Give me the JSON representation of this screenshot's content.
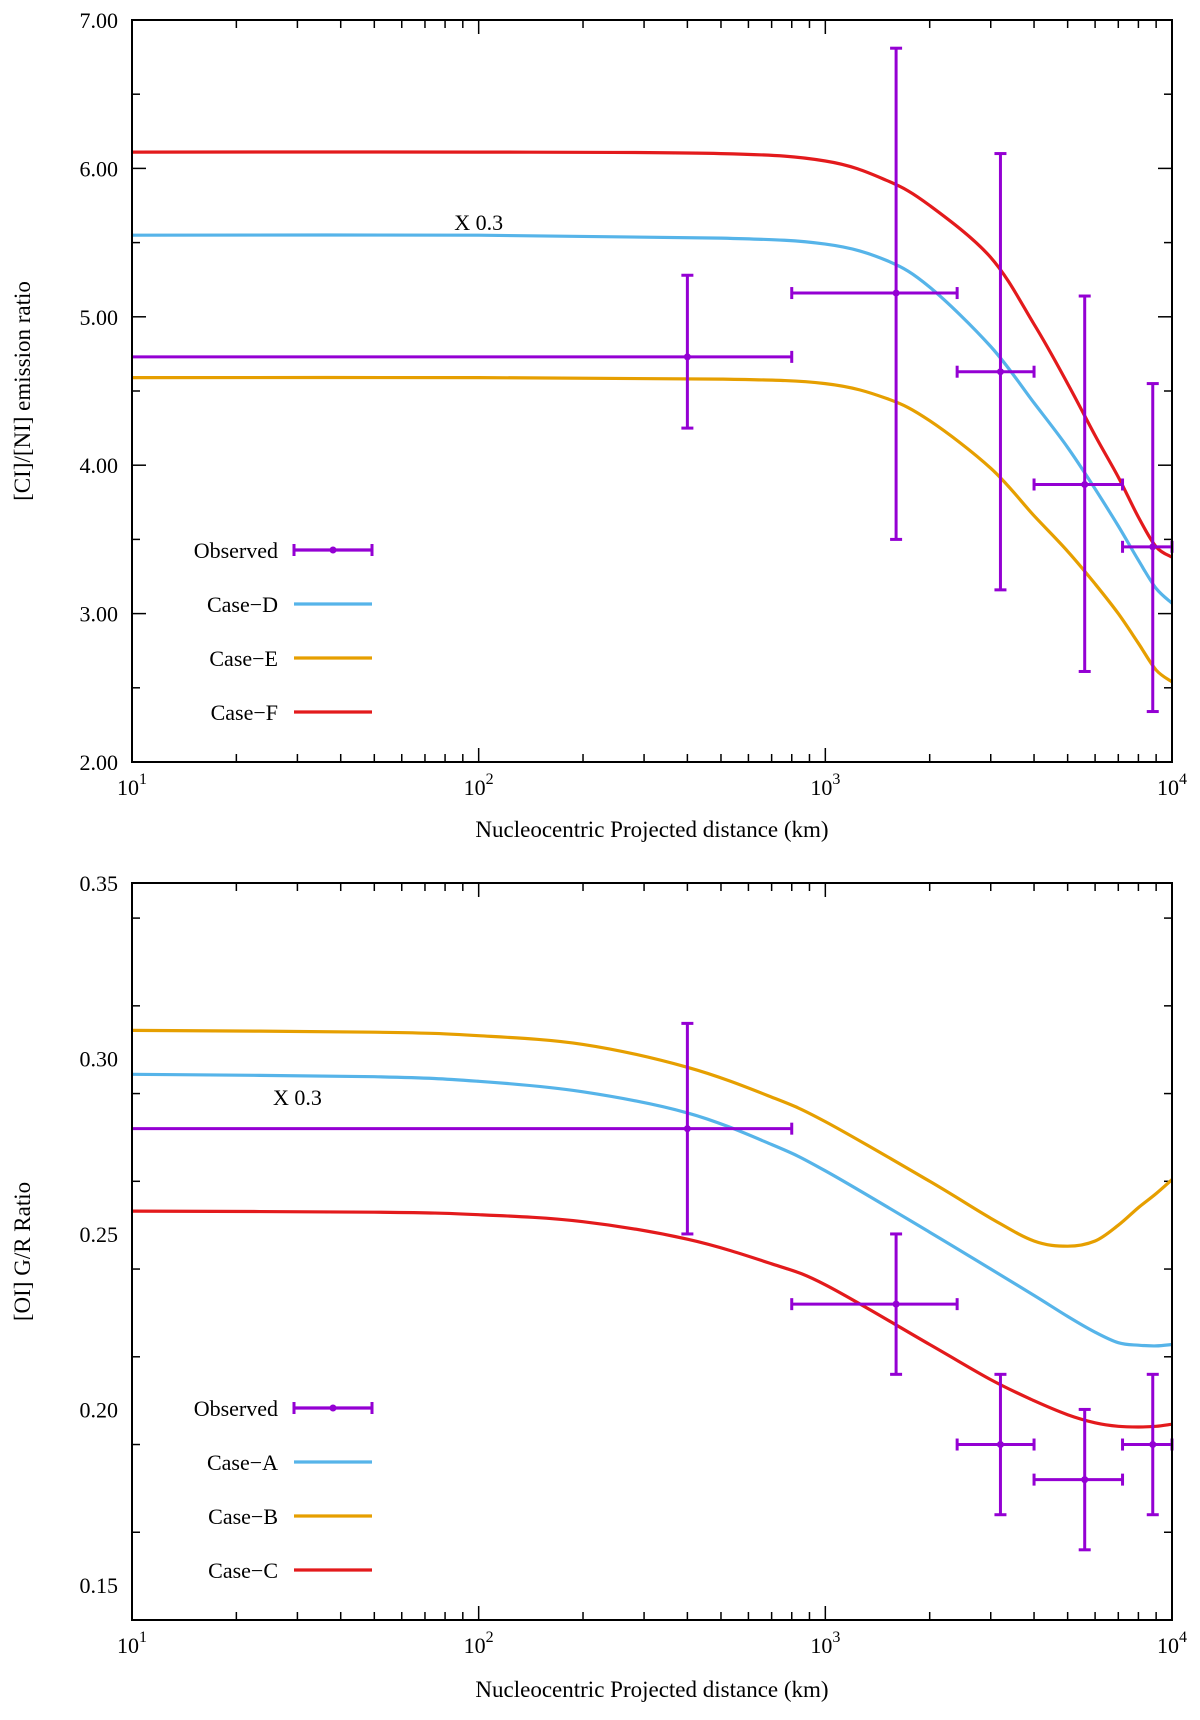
{
  "chart_data": [
    {
      "type": "line",
      "xscale": "log",
      "xlim": [
        10,
        10000
      ],
      "ylim": [
        2.0,
        7.0
      ],
      "xlabel": "Nucleocentric Projected distance (km)",
      "ylabel": "[CI]/[NI] emission ratio",
      "x_tick_labels": [
        {
          "x": 10,
          "base": "10",
          "exp": "1"
        },
        {
          "x": 100,
          "base": "10",
          "exp": "2"
        },
        {
          "x": 1000,
          "base": "10",
          "exp": "3"
        },
        {
          "x": 10000,
          "base": "10",
          "exp": "4"
        }
      ],
      "y_ticks": [
        2.0,
        3.0,
        4.0,
        5.0,
        6.0,
        7.0
      ],
      "y_tick_labels": [
        "2.00",
        "3.00",
        "4.00",
        "5.00",
        "6.00",
        "7.00"
      ],
      "annotation": {
        "text": "X 0.3",
        "x": 100,
        "y": 5.64
      },
      "observed": {
        "name": "Observed",
        "color": "#9400d3",
        "points": [
          {
            "x": 400,
            "y": 4.73,
            "xerr": [
              10,
              800
            ],
            "yerr": [
              4.25,
              5.28
            ]
          },
          {
            "x": 1600,
            "y": 5.16,
            "xerr": [
              800,
              2400
            ],
            "yerr": [
              3.5,
              6.81
            ]
          },
          {
            "x": 3200,
            "y": 4.63,
            "xerr": [
              2400,
              4000
            ],
            "yerr": [
              3.16,
              6.1
            ]
          },
          {
            "x": 5600,
            "y": 3.87,
            "xerr": [
              4000,
              7200
            ],
            "yerr": [
              2.61,
              5.14
            ]
          },
          {
            "x": 8800,
            "y": 3.45,
            "xerr": [
              7200,
              10000
            ],
            "yerr": [
              2.34,
              4.55
            ]
          }
        ]
      },
      "series": [
        {
          "name": "Case−D",
          "color": "#56b4e9",
          "x": [
            10,
            100,
            500,
            1000,
            1500,
            2000,
            3000,
            4000,
            5000,
            6000,
            7000,
            8000,
            9000,
            10000
          ],
          "y": [
            5.55,
            5.55,
            5.53,
            5.49,
            5.38,
            5.2,
            4.8,
            4.42,
            4.12,
            3.84,
            3.59,
            3.36,
            3.17,
            3.07
          ]
        },
        {
          "name": "Case−E",
          "color": "#e69f00",
          "x": [
            10,
            100,
            500,
            1000,
            1500,
            2000,
            3000,
            4000,
            5000,
            6000,
            7000,
            8000,
            9000,
            10000
          ],
          "y": [
            4.59,
            4.59,
            4.58,
            4.55,
            4.45,
            4.3,
            3.98,
            3.66,
            3.42,
            3.2,
            3.0,
            2.8,
            2.62,
            2.54
          ]
        },
        {
          "name": "Case−F",
          "color": "#e31a1c",
          "x": [
            10,
            100,
            500,
            1000,
            1500,
            2000,
            3000,
            4000,
            5000,
            6000,
            7000,
            8000,
            9000,
            10000
          ],
          "y": [
            6.11,
            6.11,
            6.1,
            6.05,
            5.92,
            5.75,
            5.4,
            4.95,
            4.55,
            4.2,
            3.92,
            3.65,
            3.45,
            3.38
          ]
        }
      ],
      "legend": [
        "Observed",
        "Case−D",
        "Case−E",
        "Case−F"
      ],
      "legend_position": "lower-left"
    },
    {
      "type": "line",
      "xscale": "log",
      "xlim": [
        10,
        10000
      ],
      "ylim": [
        0.14,
        0.35
      ],
      "xlabel": "Nucleocentric Projected distance (km)",
      "ylabel": "[OI] G/R Ratio",
      "x_tick_labels": [
        {
          "x": 10,
          "base": "10",
          "exp": "1"
        },
        {
          "x": 100,
          "base": "10",
          "exp": "2"
        },
        {
          "x": 1000,
          "base": "10",
          "exp": "3"
        },
        {
          "x": 10000,
          "base": "10",
          "exp": "4"
        }
      ],
      "y_ticks": [
        0.15,
        0.2,
        0.25,
        0.3,
        0.35
      ],
      "y_tick_labels": [
        "0.15",
        "0.20",
        "0.25",
        "0.30",
        "0.35"
      ],
      "annotation": {
        "text": "X 0.3",
        "x": 30,
        "y": 0.289
      },
      "observed": {
        "name": "Observed",
        "color": "#9400d3",
        "points": [
          {
            "x": 400,
            "y": 0.28,
            "xerr": [
              10,
              800
            ],
            "yerr": [
              0.25,
              0.31
            ]
          },
          {
            "x": 1600,
            "y": 0.23,
            "xerr": [
              800,
              2400
            ],
            "yerr": [
              0.21,
              0.25
            ]
          },
          {
            "x": 3200,
            "y": 0.19,
            "xerr": [
              2400,
              4000
            ],
            "yerr": [
              0.17,
              0.21
            ]
          },
          {
            "x": 5600,
            "y": 0.18,
            "xerr": [
              4000,
              7200
            ],
            "yerr": [
              0.16,
              0.2
            ]
          },
          {
            "x": 8800,
            "y": 0.19,
            "xerr": [
              7200,
              10000
            ],
            "yerr": [
              0.17,
              0.21
            ]
          }
        ]
      },
      "series": [
        {
          "name": "Case−A",
          "color": "#56b4e9",
          "x": [
            10,
            50,
            100,
            200,
            400,
            700,
            1000,
            2000,
            3000,
            4000,
            5000,
            6000,
            7000,
            8000,
            9000,
            10000
          ],
          "y": [
            0.2955,
            0.2948,
            0.2935,
            0.2905,
            0.2845,
            0.2755,
            0.268,
            0.2505,
            0.24,
            0.2325,
            0.2265,
            0.222,
            0.219,
            0.2183,
            0.2181,
            0.2185
          ]
        },
        {
          "name": "Case−B",
          "color": "#e69f00",
          "x": [
            10,
            50,
            100,
            200,
            400,
            700,
            1000,
            2000,
            3000,
            4000,
            5000,
            6000,
            7000,
            8000,
            9000,
            10000
          ],
          "y": [
            0.308,
            0.3075,
            0.3065,
            0.304,
            0.2975,
            0.289,
            0.282,
            0.265,
            0.2545,
            0.248,
            0.2465,
            0.248,
            0.2525,
            0.2575,
            0.2615,
            0.2655
          ]
        },
        {
          "name": "Case−C",
          "color": "#e31a1c",
          "x": [
            10,
            50,
            100,
            200,
            400,
            700,
            1000,
            2000,
            3000,
            4000,
            5000,
            6000,
            7000,
            8000,
            9000,
            10000
          ],
          "y": [
            0.2565,
            0.2562,
            0.2555,
            0.2535,
            0.2485,
            0.2415,
            0.2355,
            0.2185,
            0.2085,
            0.2025,
            0.1985,
            0.1962,
            0.1952,
            0.195,
            0.1952,
            0.1958
          ]
        }
      ],
      "legend": [
        "Observed",
        "Case−A",
        "Case−B",
        "Case−C"
      ],
      "legend_position": "lower-left"
    }
  ]
}
